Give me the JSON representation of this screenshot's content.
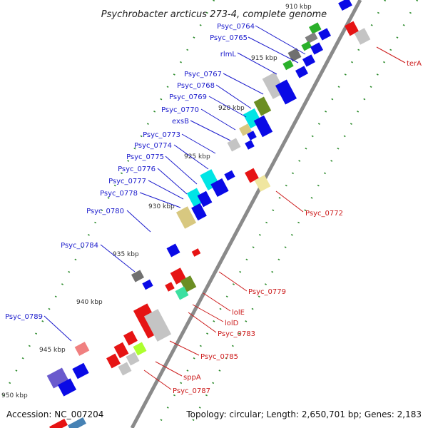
{
  "title": "Psychrobacter arcticus 273-4, complete genome",
  "footer": {
    "accession": "Accession: NC_007204",
    "summary": "Topology: circular; Length: 2,650,701 bp; Genes: 2,183"
  },
  "colors": {
    "backbone": "#8a8a8a",
    "ticks": "#2a8a2a",
    "forward_label": "#1a1acc",
    "reverse_label": "#cc1a1a",
    "forward_gene": "#0a0ae6",
    "reverse_gene": "#e61414"
  },
  "kbp_labels": [
    "910 kbp",
    "915 kbp",
    "920 kbp",
    "925 kbp",
    "930 kbp",
    "935 kbp",
    "940 kbp",
    "945 kbp",
    "950 kbp"
  ],
  "forward_labels": [
    "Psyc_0764",
    "Psyc_0765",
    "rlmL",
    "Psyc_0767",
    "Psyc_0768",
    "Psyc_0769",
    "Psyc_0770",
    "exsB",
    "Psyc_0773",
    "Psyc_0774",
    "Psyc_0775",
    "Psyc_0776",
    "Psyc_0777",
    "Psyc_0778",
    "Psyc_0780",
    "Psyc_0784",
    "Psyc_0789"
  ],
  "reverse_labels": [
    "terA",
    "Psyc_0772",
    "Psyc_0779",
    "lolE",
    "lolD",
    "Psyc_0783",
    "Psyc_0785",
    "sppA",
    "Psyc_0787"
  ]
}
